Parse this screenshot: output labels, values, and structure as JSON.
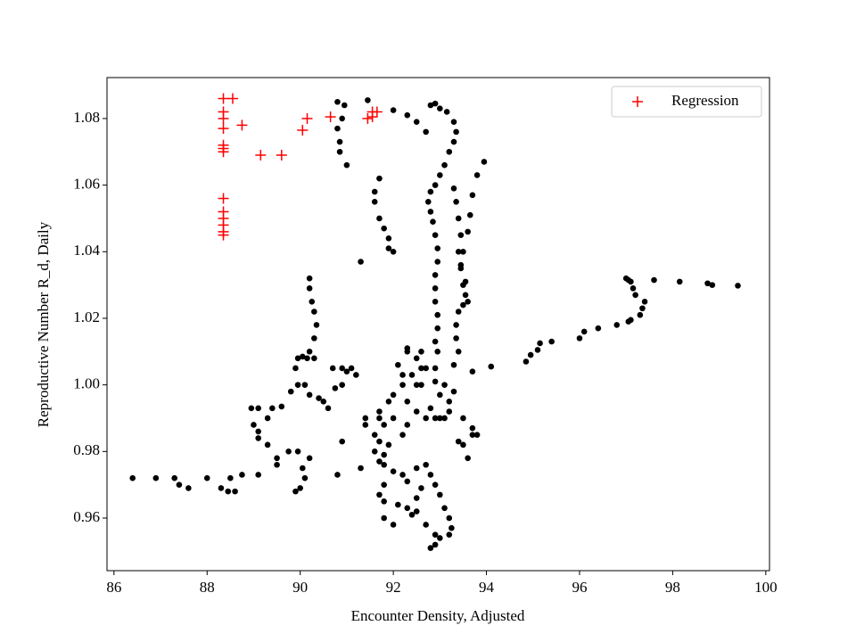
{
  "chart_data": {
    "type": "scatter",
    "xlabel": "Encounter Density, Adjusted",
    "ylabel": "Reproductive Number R_d, Daily",
    "xlim": [
      85.85,
      100.08
    ],
    "ylim": [
      0.9442,
      1.0923
    ],
    "xticks": [
      86,
      88,
      90,
      92,
      94,
      96,
      98,
      100
    ],
    "yticks": [
      0.96,
      0.98,
      {
        "value": 1.0,
        "label": "1.00"
      },
      1.02,
      1.04,
      1.06,
      1.08
    ],
    "legend": "upper right",
    "series": [
      {
        "name": "Regression",
        "color": "#ff0000",
        "marker": "+",
        "x": [
          88.35,
          88.35,
          88.35,
          88.35,
          88.35,
          88.35,
          88.35,
          88.35,
          88.35,
          88.35,
          88.35,
          88.35,
          88.35,
          88.55,
          88.75,
          89.15,
          89.6,
          90.05,
          90.15,
          90.65,
          91.45,
          91.55,
          91.65,
          91.55
        ],
        "y": [
          1.086,
          1.082,
          1.08,
          1.077,
          1.072,
          1.071,
          1.07,
          1.056,
          1.052,
          1.05,
          1.048,
          1.046,
          1.045,
          1.086,
          1.078,
          1.069,
          1.069,
          1.0765,
          1.08,
          1.0805,
          1.08,
          1.0805,
          1.082,
          1.082
        ]
      },
      {
        "color": "#000000",
        "marker": "o",
        "x": [
          86.4,
          86.9,
          87.3,
          87.4,
          87.6,
          88.0,
          88.3,
          88.5,
          88.45,
          88.6,
          88.75,
          89.1,
          89.3,
          89.5,
          89.5,
          89.3,
          89.4,
          89.6,
          89.1,
          89.1,
          89.0,
          88.95,
          89.1,
          89.8,
          89.95,
          89.9,
          89.95,
          90.05,
          90.15,
          90.3,
          90.1,
          90.2,
          90.4,
          90.5,
          90.6,
          90.75,
          90.9,
          91.0,
          91.1,
          91.2,
          90.9,
          90.7,
          90.2,
          90.1,
          90.0,
          89.9,
          89.75,
          89.95,
          90.05,
          90.8,
          90.9,
          91.3,
          90.2,
          90.2,
          90.25,
          90.3,
          90.35,
          90.3,
          90.2,
          90.8,
          90.95,
          90.9,
          90.8,
          90.85,
          90.85,
          91.0,
          91.45,
          91.3,
          91.7,
          91.6,
          91.6,
          91.7,
          91.8,
          91.9,
          92.0,
          91.9,
          92.0,
          92.3,
          92.5,
          92.7,
          92.8,
          92.9,
          93.0,
          93.15,
          93.3,
          93.35,
          93.3,
          93.2,
          93.1,
          93.0,
          92.9,
          92.8,
          92.75,
          92.8,
          92.85,
          92.9,
          92.95,
          92.95,
          92.9,
          92.9,
          92.9,
          92.95,
          92.95,
          92.9,
          92.95,
          92.9,
          92.9,
          93.3,
          93.35,
          93.4,
          93.45,
          93.4,
          93.45,
          93.55,
          93.55,
          93.5,
          93.4,
          93.35,
          93.35,
          93.4,
          93.3,
          93.95,
          93.8,
          93.7,
          93.65,
          93.6,
          93.5,
          93.45,
          93.5,
          93.6,
          92.3,
          92.5,
          92.6,
          92.4,
          92.2,
          92.3,
          92.5,
          92.7,
          92.8,
          93.0,
          93.1,
          93.3,
          93.2,
          93.0,
          92.9,
          93.1,
          93.2,
          93.5,
          93.4,
          93.5,
          93.6,
          93.7,
          93.7,
          93.8,
          92.1,
          92.2,
          92.3,
          92.6,
          92.0,
          91.9,
          91.7,
          91.8,
          91.6,
          91.7,
          91.4,
          91.4,
          91.6,
          91.7,
          91.9,
          91.8,
          91.7,
          91.8,
          92.0,
          92.2,
          92.3,
          92.5,
          92.7,
          92.8,
          92.9,
          93.0,
          93.1,
          93.2,
          93.25,
          93.2,
          93.0,
          92.9,
          92.8,
          92.9,
          92.7,
          92.5,
          92.3,
          92.1,
          91.8,
          91.7,
          91.8,
          91.8,
          92.0,
          92.4,
          92.5,
          92.6,
          92.2,
          92.3,
          92.0,
          92.6,
          92.7,
          92.5,
          94.1,
          93.7,
          94.85,
          94.95,
          95.1,
          95.15,
          95.4,
          96.0,
          96.1,
          96.4,
          96.8,
          97.05,
          97.1,
          97.3,
          97.35,
          97.4,
          97.2,
          97.15,
          97.1,
          97.0,
          97.05,
          97.6,
          98.15,
          98.75,
          98.85,
          99.4
        ],
        "y": [
          0.972,
          0.972,
          0.972,
          0.97,
          0.969,
          0.972,
          0.969,
          0.972,
          0.968,
          0.968,
          0.973,
          0.973,
          0.982,
          0.978,
          0.976,
          0.99,
          0.993,
          0.9935,
          0.984,
          0.986,
          0.988,
          0.993,
          0.993,
          0.998,
          1.0,
          1.005,
          1.008,
          1.0085,
          1.008,
          1.008,
          1.0,
          0.997,
          0.996,
          0.995,
          0.993,
          0.999,
          1.0,
          1.004,
          1.005,
          1.003,
          1.005,
          1.005,
          0.978,
          0.972,
          0.969,
          0.968,
          0.98,
          0.98,
          0.975,
          0.973,
          0.983,
          0.975,
          1.032,
          1.029,
          1.025,
          1.022,
          1.018,
          1.014,
          1.01,
          1.085,
          1.084,
          1.08,
          1.077,
          1.073,
          1.07,
          1.066,
          1.0855,
          1.037,
          1.062,
          1.058,
          1.055,
          1.05,
          1.047,
          1.044,
          1.04,
          1.041,
          1.0825,
          1.081,
          1.079,
          1.076,
          1.084,
          1.0845,
          1.083,
          1.082,
          1.079,
          1.076,
          1.073,
          1.07,
          1.066,
          1.063,
          1.06,
          1.058,
          1.055,
          1.052,
          1.049,
          1.045,
          1.041,
          1.037,
          1.033,
          1.029,
          1.025,
          1.021,
          1.017,
          1.013,
          1.01,
          1.005,
          1.001,
          1.059,
          1.055,
          1.05,
          1.045,
          1.04,
          1.036,
          1.031,
          1.027,
          1.024,
          1.022,
          1.018,
          1.014,
          1.01,
          1.006,
          1.067,
          1.063,
          1.057,
          1.051,
          1.046,
          1.04,
          1.035,
          1.03,
          1.025,
          1.01,
          1.008,
          1.005,
          1.003,
          1.0,
          0.995,
          0.992,
          0.99,
          0.993,
          0.997,
          1.0,
          0.998,
          0.995,
          0.99,
          0.99,
          0.99,
          0.992,
          0.99,
          0.983,
          0.982,
          0.978,
          0.985,
          0.987,
          0.985,
          1.006,
          1.003,
          1.011,
          1.01,
          0.997,
          0.995,
          0.992,
          0.988,
          0.985,
          0.99,
          0.99,
          0.988,
          0.98,
          0.983,
          0.982,
          0.979,
          0.977,
          0.976,
          0.974,
          0.973,
          0.971,
          0.975,
          0.976,
          0.973,
          0.97,
          0.967,
          0.963,
          0.96,
          0.957,
          0.955,
          0.954,
          0.952,
          0.951,
          0.955,
          0.958,
          0.962,
          0.963,
          0.964,
          0.965,
          0.967,
          0.97,
          0.96,
          0.958,
          0.961,
          0.966,
          0.969,
          0.985,
          0.988,
          0.99,
          1.0,
          1.005,
          1.0,
          1.0055,
          1.004,
          1.007,
          1.009,
          1.0105,
          1.0125,
          1.013,
          1.014,
          1.016,
          1.017,
          1.018,
          1.019,
          1.0195,
          1.021,
          1.023,
          1.025,
          1.027,
          1.029,
          1.031,
          1.032,
          1.0315,
          1.0315,
          1.031,
          1.0305,
          1.03,
          1.0298
        ]
      }
    ]
  }
}
